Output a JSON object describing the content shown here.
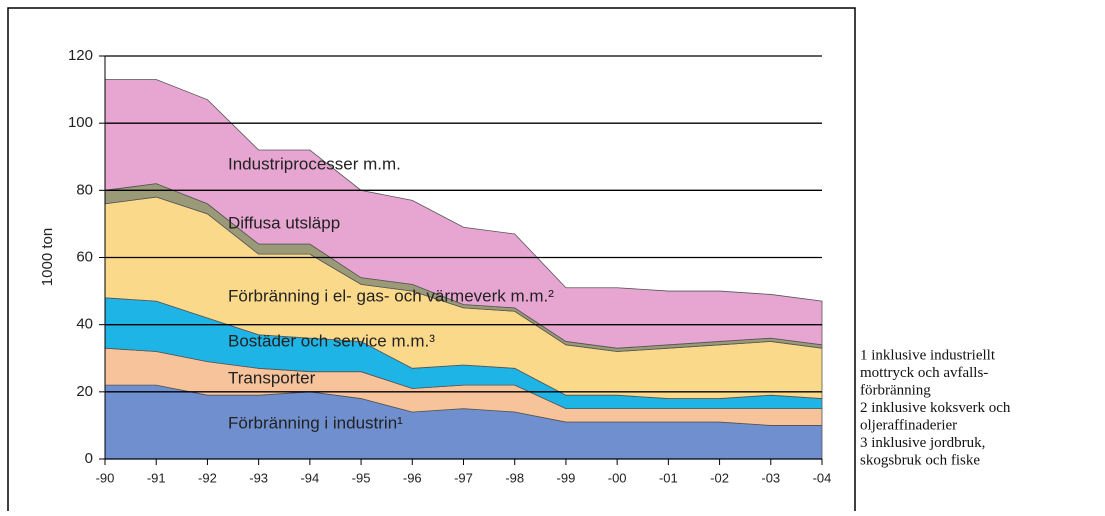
{
  "chart_data": {
    "type": "stacked-area",
    "ylabel": "1000 ton",
    "categories": [
      "-90",
      "-91",
      "-92",
      "-93",
      "-94",
      "-95",
      "-96",
      "-97",
      "-98",
      "-99",
      "-00",
      "-01",
      "-02",
      "-03",
      "-04"
    ],
    "series": [
      {
        "name": "Förbränning i industrin¹",
        "color": "#6f8fcf",
        "values": [
          22,
          22,
          19,
          19,
          20,
          18,
          14,
          15,
          14,
          11,
          11,
          11,
          11,
          10,
          10
        ]
      },
      {
        "name": "Transporter",
        "color": "#f7c39a",
        "values": [
          11,
          10,
          10,
          8,
          6,
          8,
          7,
          7,
          8,
          4,
          4,
          4,
          4,
          5,
          5
        ]
      },
      {
        "name": "Bostäder och service m.m.³",
        "color": "#1fb4e6",
        "values": [
          15,
          15,
          13,
          10,
          10,
          9,
          6,
          6,
          5,
          4,
          4,
          3,
          3,
          4,
          3
        ]
      },
      {
        "name": "Förbränning i el- gas- och värmeverk m.m.²",
        "color": "#fbd98a",
        "values": [
          28,
          31,
          31,
          24,
          25,
          17,
          23,
          17,
          17,
          15,
          13,
          15,
          16,
          16,
          15
        ]
      },
      {
        "name": "Diffusa utsläpp",
        "color": "#9b9a78",
        "values": [
          4,
          4,
          3,
          3,
          3,
          2,
          2,
          1,
          1,
          1,
          1,
          1,
          1,
          1,
          1
        ]
      },
      {
        "name": "Industriprocesser m.m.",
        "color": "#e7a6d2",
        "values": [
          33,
          31,
          31,
          28,
          28,
          26,
          25,
          23,
          22,
          16,
          18,
          16,
          15,
          13,
          13
        ]
      }
    ],
    "ylim": [
      0,
      120
    ],
    "yticks": [
      0,
      20,
      40,
      60,
      80,
      100,
      120
    ],
    "grid": true,
    "footnotes": [
      "1  inklusive industriellt",
      "mottryck och avfalls-",
      "förbränning",
      "2   inklusive koksverk och",
      "oljeraffinaderier",
      "3   inklusive jordbruk,",
      "skogsbruk och fiske"
    ]
  }
}
